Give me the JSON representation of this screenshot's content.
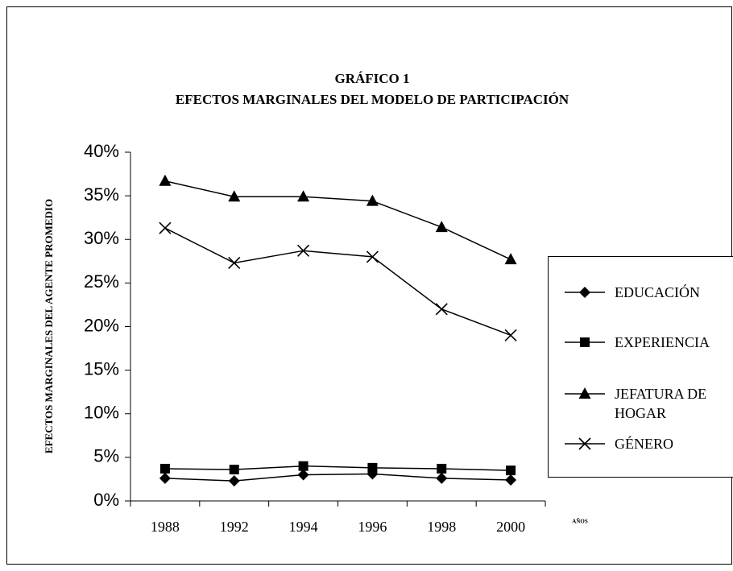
{
  "chart_data": {
    "type": "line",
    "title": "GRÁFICO 1",
    "subtitle": "EFECTOS MARGINALES DEL MODELO DE PARTICIPACIÓN",
    "y_label": "EFECTOS MARGINALES DEL AGENTE PROMEDIO",
    "x_label": "AÑOS",
    "categories": [
      "1988",
      "1992",
      "1994",
      "1996",
      "1998",
      "2000"
    ],
    "series": [
      {
        "name": "EDUCACIÓN",
        "color": "#000000",
        "marker": "diamond",
        "values": [
          2.6,
          2.3,
          3.0,
          3.1,
          2.6,
          2.4
        ]
      },
      {
        "name": "EXPERIENCIA",
        "color": "#000000",
        "marker": "square",
        "values": [
          3.7,
          3.6,
          4.0,
          3.8,
          3.7,
          3.5
        ]
      },
      {
        "name": "JEFATURA DE HOGAR",
        "color": "#000000",
        "marker": "triangle",
        "values": [
          36.7,
          34.9,
          34.9,
          34.4,
          31.4,
          27.7
        ]
      },
      {
        "name": "GÉNERO",
        "color": "#000000",
        "marker": "x",
        "values": [
          31.3,
          27.3,
          28.7,
          28.0,
          22.0,
          19.0
        ]
      }
    ],
    "ylim": [
      0,
      40
    ],
    "yticks": [
      {
        "value": 0,
        "label": "0%"
      },
      {
        "value": 5,
        "label": "5%"
      },
      {
        "value": 10,
        "label": "10%"
      },
      {
        "value": 15,
        "label": "15%"
      },
      {
        "value": 20,
        "label": "20%"
      },
      {
        "value": 25,
        "label": "25%"
      },
      {
        "value": 30,
        "label": "30%"
      },
      {
        "value": 35,
        "label": "35%"
      },
      {
        "value": 40,
        "label": "40%"
      }
    ],
    "legend": "right",
    "grid": false
  }
}
